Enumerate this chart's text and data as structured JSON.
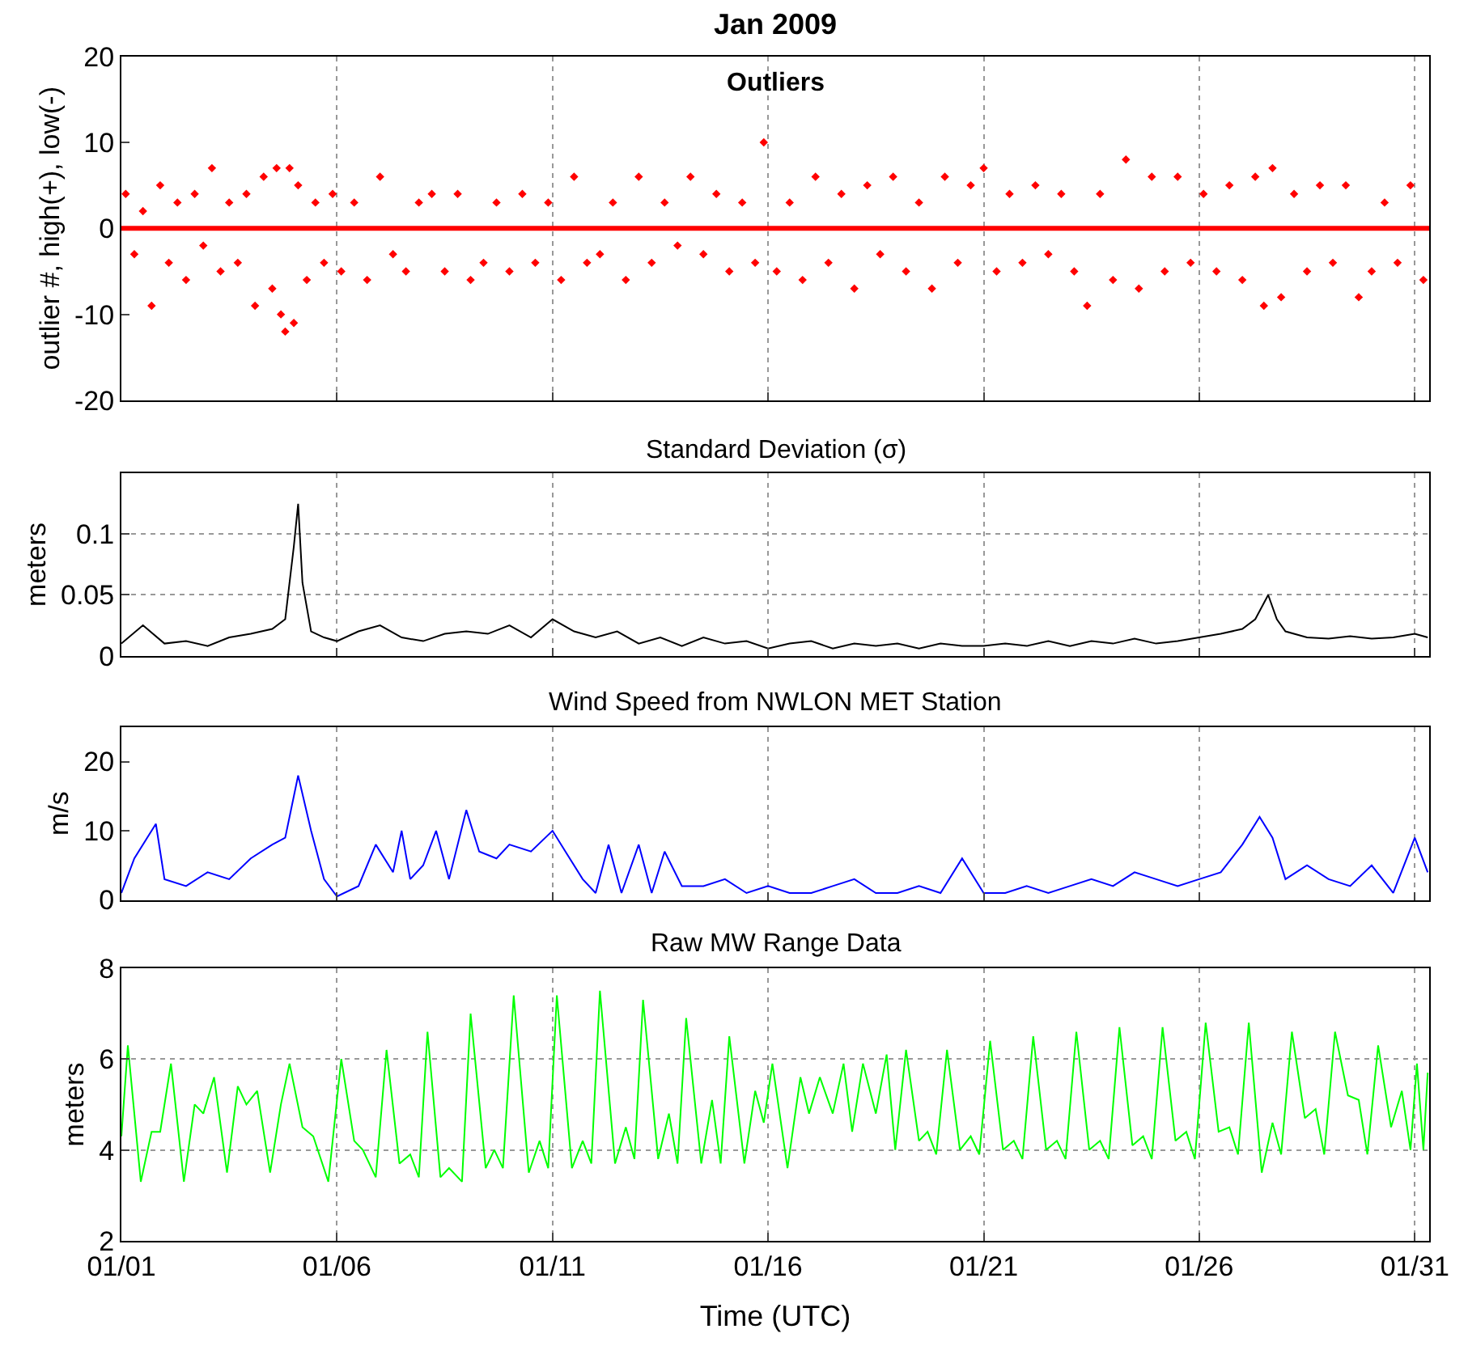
{
  "chart_data": [
    {
      "type": "scatter",
      "title": "Jan 2009",
      "subtitle": "Outliers",
      "ylabel": "outlier #, high(+), low(-)",
      "xlim": [
        "2009-01-01",
        "2009-01-31T08:00"
      ],
      "ylim": [
        -20,
        20
      ],
      "yticks": [
        -20,
        -10,
        0,
        10,
        20
      ],
      "xticks": [
        {
          "value": "2009-01-01",
          "label": null
        },
        {
          "value": "2009-01-06",
          "label": null
        },
        {
          "value": "2009-01-11",
          "label": null
        },
        {
          "value": "2009-01-16",
          "label": null
        },
        {
          "value": "2009-01-21",
          "label": null
        },
        {
          "value": "2009-01-26",
          "label": null
        },
        {
          "value": "2009-01-31",
          "label": null
        }
      ],
      "tick_labels": "y",
      "grid": "x",
      "marker": "diamond",
      "ref_lines": [
        {
          "axis": "y",
          "value": 0,
          "color": "#ff0000"
        }
      ],
      "series": [
        {
          "color": "#ff0000",
          "x": [
            "2009-01-01T02:24",
            "2009-01-01T07:12",
            "2009-01-01T12:00",
            "2009-01-01T16:48",
            "2009-01-01T21:36",
            "2009-01-02T02:24",
            "2009-01-02T07:12",
            "2009-01-02T12:00",
            "2009-01-02T16:48",
            "2009-01-02T21:36",
            "2009-01-03T02:24",
            "2009-01-03T07:12",
            "2009-01-03T12:00",
            "2009-01-03T16:48",
            "2009-01-03T21:36",
            "2009-01-04T02:24",
            "2009-01-04T07:12",
            "2009-01-04T12:00",
            "2009-01-04T14:24",
            "2009-01-04T16:48",
            "2009-01-04T19:12",
            "2009-01-04T21:36",
            "2009-01-05T00:00",
            "2009-01-05T02:24",
            "2009-01-05T07:12",
            "2009-01-05T12:00",
            "2009-01-05T16:48",
            "2009-01-05T21:36",
            "2009-01-06T02:24",
            "2009-01-06T09:36",
            "2009-01-06T16:48",
            "2009-01-07T00:00",
            "2009-01-07T07:12",
            "2009-01-07T14:24",
            "2009-01-07T21:36",
            "2009-01-08T04:48",
            "2009-01-08T12:00",
            "2009-01-08T19:12",
            "2009-01-09T02:24",
            "2009-01-09T09:36",
            "2009-01-09T16:48",
            "2009-01-10T00:00",
            "2009-01-10T07:12",
            "2009-01-10T14:24",
            "2009-01-10T21:36",
            "2009-01-11T04:48",
            "2009-01-11T12:00",
            "2009-01-11T19:12",
            "2009-01-12T02:24",
            "2009-01-12T09:36",
            "2009-01-12T16:48",
            "2009-01-13T00:00",
            "2009-01-13T07:12",
            "2009-01-13T14:24",
            "2009-01-13T21:36",
            "2009-01-14T04:48",
            "2009-01-14T12:00",
            "2009-01-14T19:12",
            "2009-01-15T02:24",
            "2009-01-15T09:36",
            "2009-01-15T16:48",
            "2009-01-15T21:36",
            "2009-01-16T04:48",
            "2009-01-16T12:00",
            "2009-01-16T19:12",
            "2009-01-17T02:24",
            "2009-01-17T09:36",
            "2009-01-17T16:48",
            "2009-01-18T00:00",
            "2009-01-18T07:12",
            "2009-01-18T14:24",
            "2009-01-18T21:36",
            "2009-01-19T04:48",
            "2009-01-19T12:00",
            "2009-01-19T19:12",
            "2009-01-20T02:24",
            "2009-01-20T09:36",
            "2009-01-20T16:48",
            "2009-01-21T00:00",
            "2009-01-21T07:12",
            "2009-01-21T14:24",
            "2009-01-21T21:36",
            "2009-01-22T04:48",
            "2009-01-22T12:00",
            "2009-01-22T19:12",
            "2009-01-23T02:24",
            "2009-01-23T09:36",
            "2009-01-23T16:48",
            "2009-01-24T00:00",
            "2009-01-24T07:12",
            "2009-01-24T14:24",
            "2009-01-24T21:36",
            "2009-01-25T04:48",
            "2009-01-25T12:00",
            "2009-01-25T19:12",
            "2009-01-26T02:24",
            "2009-01-26T09:36",
            "2009-01-26T16:48",
            "2009-01-27T00:00",
            "2009-01-27T07:12",
            "2009-01-27T12:00",
            "2009-01-27T16:48",
            "2009-01-27T21:36",
            "2009-01-28T04:48",
            "2009-01-28T12:00",
            "2009-01-28T19:12",
            "2009-01-29T02:24",
            "2009-01-29T09:36",
            "2009-01-29T16:48",
            "2009-01-30T00:00",
            "2009-01-30T07:12",
            "2009-01-30T14:24",
            "2009-01-30T21:36",
            "2009-01-31T04:48"
          ],
          "values": [
            4,
            -3,
            2,
            -9,
            5,
            -4,
            3,
            -6,
            4,
            -2,
            7,
            -5,
            3,
            -4,
            4,
            -9,
            6,
            -7,
            7,
            -10,
            -12,
            7,
            -11,
            5,
            -6,
            3,
            -4,
            4,
            -5,
            3,
            -6,
            6,
            -3,
            -5,
            3,
            4,
            -5,
            4,
            -6,
            -4,
            3,
            -5,
            4,
            -4,
            3,
            -6,
            6,
            -4,
            -3,
            3,
            -6,
            6,
            -4,
            3,
            -2,
            6,
            -3,
            4,
            -5,
            3,
            -4,
            10,
            -5,
            3,
            -6,
            6,
            -4,
            4,
            -7,
            5,
            -3,
            6,
            -5,
            3,
            -7,
            6,
            -4,
            5,
            7,
            -5,
            4,
            -4,
            5,
            -3,
            4,
            -5,
            -9,
            4,
            -6,
            8,
            -7,
            6,
            -5,
            6,
            -4,
            4,
            -5,
            5,
            -6,
            6,
            -9,
            7,
            -8,
            4,
            -5,
            5,
            -4,
            5,
            -8,
            -5,
            3,
            -4,
            5,
            -6
          ]
        }
      ]
    },
    {
      "type": "line",
      "title": "Standard Deviation (σ)",
      "ylabel": "meters",
      "xlim": [
        "2009-01-01",
        "2009-01-31T08:00"
      ],
      "ylim": [
        0,
        0.15
      ],
      "yticks": [
        0,
        0.05,
        0.1
      ],
      "xticks": [
        {
          "value": "2009-01-01",
          "label": null
        },
        {
          "value": "2009-01-06",
          "label": null
        },
        {
          "value": "2009-01-11",
          "label": null
        },
        {
          "value": "2009-01-16",
          "label": null
        },
        {
          "value": "2009-01-21",
          "label": null
        },
        {
          "value": "2009-01-26",
          "label": null
        },
        {
          "value": "2009-01-31",
          "label": null
        }
      ],
      "tick_labels": "y",
      "grid": true,
      "line_style": "solid",
      "series": [
        {
          "color": "#000000",
          "x": [
            "2009-01-01T00:00",
            "2009-01-01T12:00",
            "2009-01-02T00:00",
            "2009-01-02T12:00",
            "2009-01-03T00:00",
            "2009-01-03T12:00",
            "2009-01-04T00:00",
            "2009-01-04T12:00",
            "2009-01-04T19:12",
            "2009-01-05T00:00",
            "2009-01-05T02:24",
            "2009-01-05T04:48",
            "2009-01-05T09:36",
            "2009-01-05T16:48",
            "2009-01-06T00:00",
            "2009-01-06T12:00",
            "2009-01-07T00:00",
            "2009-01-07T12:00",
            "2009-01-08T00:00",
            "2009-01-08T12:00",
            "2009-01-09T00:00",
            "2009-01-09T12:00",
            "2009-01-10T00:00",
            "2009-01-10T12:00",
            "2009-01-11T00:00",
            "2009-01-11T12:00",
            "2009-01-12T00:00",
            "2009-01-12T12:00",
            "2009-01-13T00:00",
            "2009-01-13T12:00",
            "2009-01-14T00:00",
            "2009-01-14T12:00",
            "2009-01-15T00:00",
            "2009-01-15T12:00",
            "2009-01-16T00:00",
            "2009-01-16T12:00",
            "2009-01-17T00:00",
            "2009-01-17T12:00",
            "2009-01-18T00:00",
            "2009-01-18T12:00",
            "2009-01-19T00:00",
            "2009-01-19T12:00",
            "2009-01-20T00:00",
            "2009-01-20T12:00",
            "2009-01-21T00:00",
            "2009-01-21T12:00",
            "2009-01-22T00:00",
            "2009-01-22T12:00",
            "2009-01-23T00:00",
            "2009-01-23T12:00",
            "2009-01-24T00:00",
            "2009-01-24T12:00",
            "2009-01-25T00:00",
            "2009-01-25T12:00",
            "2009-01-26T00:00",
            "2009-01-26T12:00",
            "2009-01-27T00:00",
            "2009-01-27T07:12",
            "2009-01-27T14:24",
            "2009-01-27T19:12",
            "2009-01-28T00:00",
            "2009-01-28T12:00",
            "2009-01-29T00:00",
            "2009-01-29T12:00",
            "2009-01-30T00:00",
            "2009-01-30T12:00",
            "2009-01-31T00:00",
            "2009-01-31T07:12"
          ],
          "values": [
            0.01,
            0.025,
            0.01,
            0.012,
            0.008,
            0.015,
            0.018,
            0.022,
            0.03,
            0.09,
            0.125,
            0.06,
            0.02,
            0.015,
            0.012,
            0.02,
            0.025,
            0.015,
            0.012,
            0.018,
            0.02,
            0.018,
            0.025,
            0.015,
            0.03,
            0.02,
            0.015,
            0.02,
            0.01,
            0.015,
            0.008,
            0.015,
            0.01,
            0.012,
            0.006,
            0.01,
            0.012,
            0.006,
            0.01,
            0.008,
            0.01,
            0.006,
            0.01,
            0.008,
            0.008,
            0.01,
            0.008,
            0.012,
            0.008,
            0.012,
            0.01,
            0.014,
            0.01,
            0.012,
            0.015,
            0.018,
            0.022,
            0.03,
            0.05,
            0.03,
            0.02,
            0.015,
            0.014,
            0.016,
            0.014,
            0.015,
            0.018,
            0.015
          ]
        }
      ]
    },
    {
      "type": "line",
      "title": "Wind Speed from NWLON MET Station",
      "ylabel": "m/s",
      "xlim": [
        "2009-01-01",
        "2009-01-31T08:00"
      ],
      "ylim": [
        0,
        25
      ],
      "yticks": [
        0,
        10,
        20
      ],
      "xticks": [
        {
          "value": "2009-01-01",
          "label": null
        },
        {
          "value": "2009-01-06",
          "label": null
        },
        {
          "value": "2009-01-11",
          "label": null
        },
        {
          "value": "2009-01-16",
          "label": null
        },
        {
          "value": "2009-01-21",
          "label": null
        },
        {
          "value": "2009-01-26",
          "label": null
        },
        {
          "value": "2009-01-31",
          "label": null
        }
      ],
      "tick_labels": "y",
      "grid": "x",
      "line_style": "solid",
      "series": [
        {
          "color": "#0000ff",
          "x": [
            "2009-01-01T00:00",
            "2009-01-01T07:12",
            "2009-01-01T19:12",
            "2009-01-02T00:00",
            "2009-01-02T12:00",
            "2009-01-03T00:00",
            "2009-01-03T12:00",
            "2009-01-04T00:00",
            "2009-01-04T12:00",
            "2009-01-04T19:12",
            "2009-01-05T02:24",
            "2009-01-05T09:36",
            "2009-01-05T16:48",
            "2009-01-06T00:00",
            "2009-01-06T12:00",
            "2009-01-06T21:36",
            "2009-01-07T07:12",
            "2009-01-07T12:00",
            "2009-01-07T16:48",
            "2009-01-08T00:00",
            "2009-01-08T07:12",
            "2009-01-08T14:24",
            "2009-01-09T00:00",
            "2009-01-09T07:12",
            "2009-01-09T16:48",
            "2009-01-10T00:00",
            "2009-01-10T12:00",
            "2009-01-11T00:00",
            "2009-01-11T07:12",
            "2009-01-11T16:48",
            "2009-01-12T00:00",
            "2009-01-12T07:12",
            "2009-01-12T14:24",
            "2009-01-13T00:00",
            "2009-01-13T07:12",
            "2009-01-13T14:24",
            "2009-01-14T00:00",
            "2009-01-14T12:00",
            "2009-01-15T00:00",
            "2009-01-15T12:00",
            "2009-01-16T00:00",
            "2009-01-16T12:00",
            "2009-01-17T00:00",
            "2009-01-17T12:00",
            "2009-01-18T00:00",
            "2009-01-18T12:00",
            "2009-01-19T00:00",
            "2009-01-19T12:00",
            "2009-01-20T00:00",
            "2009-01-20T12:00",
            "2009-01-21T00:00",
            "2009-01-21T12:00",
            "2009-01-22T00:00",
            "2009-01-22T12:00",
            "2009-01-23T00:00",
            "2009-01-23T12:00",
            "2009-01-24T00:00",
            "2009-01-24T12:00",
            "2009-01-25T00:00",
            "2009-01-25T12:00",
            "2009-01-26T00:00",
            "2009-01-26T12:00",
            "2009-01-27T00:00",
            "2009-01-27T09:36",
            "2009-01-27T16:48",
            "2009-01-28T00:00",
            "2009-01-28T12:00",
            "2009-01-29T00:00",
            "2009-01-29T12:00",
            "2009-01-30T00:00",
            "2009-01-30T12:00",
            "2009-01-31T00:00",
            "2009-01-31T07:12"
          ],
          "values": [
            1,
            6,
            11,
            3,
            2,
            4,
            3,
            6,
            8,
            9,
            18,
            10,
            3,
            0.5,
            2,
            8,
            4,
            10,
            3,
            5,
            10,
            3,
            13,
            7,
            6,
            8,
            7,
            10,
            7,
            3,
            1,
            8,
            1,
            8,
            1,
            7,
            2,
            2,
            3,
            1,
            2,
            1,
            1,
            2,
            3,
            1,
            1,
            2,
            1,
            6,
            1,
            1,
            2,
            1,
            2,
            3,
            2,
            4,
            3,
            2,
            3,
            4,
            8,
            12,
            9,
            3,
            5,
            3,
            2,
            5,
            1,
            9,
            4
          ]
        }
      ]
    },
    {
      "type": "line",
      "title": "Raw MW Range Data",
      "xlabel": "Time (UTC)",
      "ylabel": "meters",
      "xlim": [
        "2009-01-01",
        "2009-01-31T08:00"
      ],
      "ylim": [
        2,
        8
      ],
      "yticks": [
        2,
        4,
        6,
        8
      ],
      "xticks": [
        {
          "value": "2009-01-01",
          "label": "01/01"
        },
        {
          "value": "2009-01-06",
          "label": "01/06"
        },
        {
          "value": "2009-01-11",
          "label": "01/11"
        },
        {
          "value": "2009-01-16",
          "label": "01/16"
        },
        {
          "value": "2009-01-21",
          "label": "01/21"
        },
        {
          "value": "2009-01-26",
          "label": "01/26"
        },
        {
          "value": "2009-01-31",
          "label": "01/31"
        }
      ],
      "grid": true,
      "line_style": "solid",
      "series": [
        {
          "color": "#00ff00",
          "x": [
            "2009-01-01T00:00",
            "2009-01-01T03:36",
            "2009-01-01T10:48",
            "2009-01-01T16:48",
            "2009-01-01T21:36",
            "2009-01-02T03:36",
            "2009-01-02T10:48",
            "2009-01-02T16:48",
            "2009-01-02T21:36",
            "2009-01-03T03:36",
            "2009-01-03T10:48",
            "2009-01-03T16:48",
            "2009-01-03T21:36",
            "2009-01-04T03:36",
            "2009-01-04T10:48",
            "2009-01-04T16:48",
            "2009-01-04T21:36",
            "2009-01-05T04:48",
            "2009-01-05T10:48",
            "2009-01-05T19:12",
            "2009-01-06T02:24",
            "2009-01-06T09:36",
            "2009-01-06T14:24",
            "2009-01-06T21:36",
            "2009-01-07T03:36",
            "2009-01-07T10:48",
            "2009-01-07T16:48",
            "2009-01-07T21:36",
            "2009-01-08T02:24",
            "2009-01-08T09:36",
            "2009-01-08T14:24",
            "2009-01-08T21:36",
            "2009-01-09T02:24",
            "2009-01-09T10:48",
            "2009-01-09T15:36",
            "2009-01-09T20:24",
            "2009-01-10T02:24",
            "2009-01-10T10:48",
            "2009-01-10T16:48",
            "2009-01-10T21:36",
            "2009-01-11T02:24",
            "2009-01-11T10:48",
            "2009-01-11T16:48",
            "2009-01-11T21:36",
            "2009-01-12T02:24",
            "2009-01-12T10:48",
            "2009-01-12T16:48",
            "2009-01-12T21:36",
            "2009-01-13T02:24",
            "2009-01-13T10:48",
            "2009-01-13T16:48",
            "2009-01-13T21:36",
            "2009-01-14T02:24",
            "2009-01-14T10:48",
            "2009-01-14T16:48",
            "2009-01-14T21:36",
            "2009-01-15T02:24",
            "2009-01-15T10:48",
            "2009-01-15T16:48",
            "2009-01-15T21:36",
            "2009-01-16T02:24",
            "2009-01-16T10:48",
            "2009-01-16T18:00",
            "2009-01-16T22:48",
            "2009-01-17T04:48",
            "2009-01-17T12:00",
            "2009-01-17T18:00",
            "2009-01-17T22:48",
            "2009-01-18T04:48",
            "2009-01-18T12:00",
            "2009-01-18T18:00",
            "2009-01-18T22:48",
            "2009-01-19T04:48",
            "2009-01-19T12:00",
            "2009-01-19T16:48",
            "2009-01-19T21:36",
            "2009-01-20T03:36",
            "2009-01-20T10:48",
            "2009-01-20T16:48",
            "2009-01-20T21:36",
            "2009-01-21T03:36",
            "2009-01-21T10:48",
            "2009-01-21T16:48",
            "2009-01-21T21:36",
            "2009-01-22T03:36",
            "2009-01-22T10:48",
            "2009-01-22T16:48",
            "2009-01-22T21:36",
            "2009-01-23T03:36",
            "2009-01-23T10:48",
            "2009-01-23T16:48",
            "2009-01-23T21:36",
            "2009-01-24T03:36",
            "2009-01-24T10:48",
            "2009-01-24T16:48",
            "2009-01-24T21:36",
            "2009-01-25T03:36",
            "2009-01-25T10:48",
            "2009-01-25T16:48",
            "2009-01-25T21:36",
            "2009-01-26T03:36",
            "2009-01-26T10:48",
            "2009-01-26T16:48",
            "2009-01-26T21:36",
            "2009-01-27T03:36",
            "2009-01-27T10:48",
            "2009-01-27T16:48",
            "2009-01-27T21:36",
            "2009-01-28T03:36",
            "2009-01-28T10:48",
            "2009-01-28T16:48",
            "2009-01-28T21:36",
            "2009-01-29T03:36",
            "2009-01-29T10:48",
            "2009-01-29T16:48",
            "2009-01-29T21:36",
            "2009-01-30T03:36",
            "2009-01-30T10:48",
            "2009-01-30T16:48",
            "2009-01-30T21:36",
            "2009-01-31T01:12",
            "2009-01-31T04:48",
            "2009-01-31T07:12"
          ],
          "values": [
            4.3,
            6.3,
            3.3,
            4.4,
            4.4,
            5.9,
            3.3,
            5.0,
            4.8,
            5.6,
            3.5,
            5.4,
            5.0,
            5.3,
            3.5,
            5.0,
            5.9,
            4.5,
            4.3,
            3.3,
            6.0,
            4.2,
            4.0,
            3.4,
            6.2,
            3.7,
            3.9,
            3.4,
            6.6,
            3.4,
            3.6,
            3.3,
            7.0,
            3.6,
            4.0,
            3.6,
            7.4,
            3.5,
            4.2,
            3.6,
            7.4,
            3.6,
            4.2,
            3.7,
            7.5,
            3.7,
            4.5,
            3.8,
            7.3,
            3.8,
            4.8,
            3.7,
            6.9,
            3.7,
            5.1,
            3.7,
            6.5,
            3.7,
            5.3,
            4.6,
            5.9,
            3.6,
            5.6,
            4.8,
            5.6,
            4.8,
            5.9,
            4.4,
            5.9,
            4.8,
            6.1,
            4.0,
            6.2,
            4.2,
            4.4,
            3.9,
            6.2,
            4.0,
            4.3,
            3.9,
            6.4,
            4.0,
            4.2,
            3.8,
            6.5,
            4.0,
            4.2,
            3.8,
            6.6,
            4.0,
            4.2,
            3.8,
            6.7,
            4.1,
            4.3,
            3.8,
            6.7,
            4.2,
            4.4,
            3.8,
            6.8,
            4.4,
            4.5,
            3.9,
            6.8,
            3.5,
            4.6,
            3.9,
            6.6,
            4.7,
            4.9,
            3.9,
            6.6,
            5.2,
            5.1,
            3.9,
            6.3,
            4.5,
            5.3,
            4.0,
            5.9,
            4.0,
            5.7
          ]
        }
      ]
    }
  ]
}
